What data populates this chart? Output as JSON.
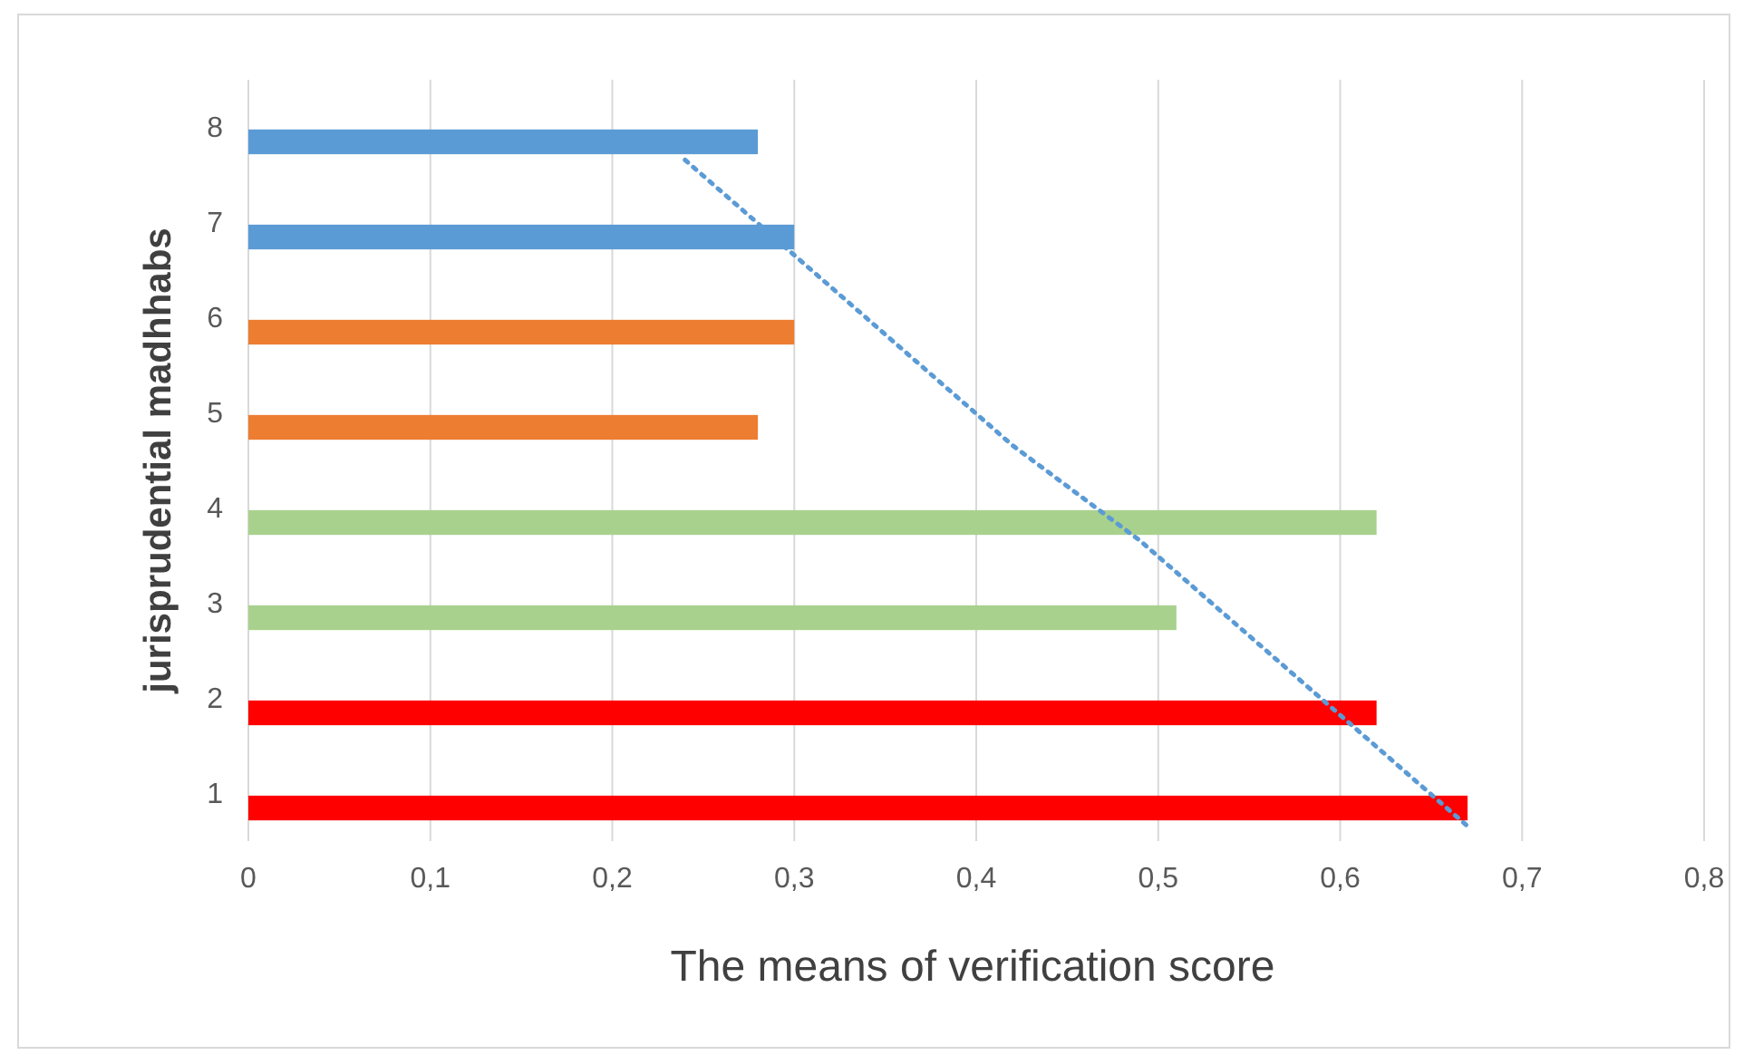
{
  "chart_data": {
    "type": "bar",
    "orientation": "horizontal",
    "xlabel": "The means of verification score",
    "ylabel": "jurisprudential madhhabs",
    "categories": [
      "8",
      "7",
      "6",
      "5",
      "4",
      "3",
      "2",
      "1"
    ],
    "series": [
      {
        "colors": [
          "#5b9bd5",
          "#5b9bd5",
          "#ed7d31",
          "#ed7d31",
          "#a9d18e",
          "#a9d18e",
          "#ff0000",
          "#ff0000"
        ],
        "values": [
          0.28,
          0.3,
          0.3,
          0.28,
          0.62,
          0.51,
          0.62,
          0.67
        ]
      },
      {
        "type": "line",
        "color": "#5b9bd5",
        "line_style": "dotted",
        "marker": "none",
        "values": [
          0.24,
          0.3,
          0.36,
          0.42,
          0.49,
          0.55,
          0.61,
          0.67
        ]
      }
    ],
    "xlim": [
      0,
      0.8
    ],
    "xticks": [
      {
        "value": 0,
        "label": "0"
      },
      {
        "value": 0.1,
        "label": "0,1"
      },
      {
        "value": 0.2,
        "label": "0,2"
      },
      {
        "value": 0.3,
        "label": "0,3"
      },
      {
        "value": 0.4,
        "label": "0,4"
      },
      {
        "value": 0.5,
        "label": "0,5"
      },
      {
        "value": 0.6,
        "label": "0,6"
      },
      {
        "value": 0.7,
        "label": "0,7"
      },
      {
        "value": 0.8,
        "label": "0,8"
      }
    ],
    "grid": "x"
  }
}
